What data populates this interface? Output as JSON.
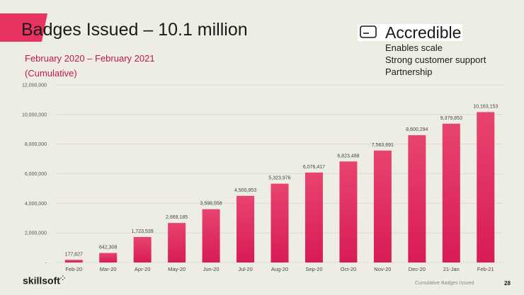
{
  "header": {
    "title": "Badges Issued – 10.1 million",
    "subtitle_line1": "February 2020 – February 2021",
    "subtitle_line2": "(Cumulative)"
  },
  "brand": {
    "name": "Accredible",
    "icon": "badge-card-icon",
    "points": [
      "Enables scale",
      "Strong customer support",
      "Partnership"
    ]
  },
  "chart_data": {
    "type": "bar",
    "categories": [
      "Feb-20",
      "Mar-20",
      "Apr-20",
      "May-20",
      "Jun-20",
      "Jul-20",
      "Aug-20",
      "Sep-20",
      "Oct-20",
      "Nov-20",
      "Dec-20",
      "21-Jan",
      "Feb-21"
    ],
    "values": [
      177827,
      642308,
      1723539,
      2669185,
      3598558,
      4500953,
      5323976,
      6076417,
      6823488,
      7563691,
      8600294,
      9379853,
      10163153
    ],
    "data_labels": [
      "177,827",
      "642,308",
      "1,723,539",
      "2,669,185",
      "3,598,558",
      "4,500,953",
      "5,323,976",
      "6,076,417",
      "6,823,488",
      "7,563,691",
      "8,600,294",
      "9,379,853",
      "10,163,153"
    ],
    "ylim": [
      0,
      12000000
    ],
    "y_ticks": [
      0,
      2000000,
      4000000,
      6000000,
      8000000,
      10000000,
      12000000
    ],
    "y_tick_labels": [
      "-",
      "2,000,000",
      "4,000,000",
      "6,000,000",
      "8,000,000",
      "10,000,000",
      "12,000,000"
    ],
    "grid": true,
    "bar_color_top": "#e8446f",
    "bar_color_bottom": "#d81b56"
  },
  "footer": {
    "logo": "skillsoft",
    "caption": "Cumulative Badges Issued",
    "page": "28"
  }
}
